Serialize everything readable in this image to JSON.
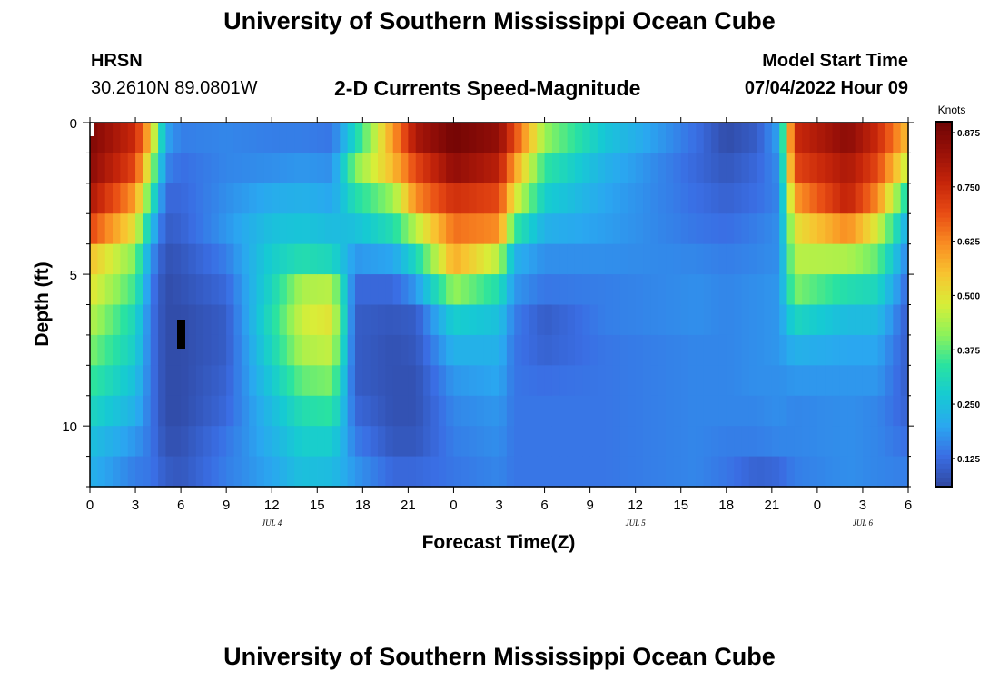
{
  "header": {
    "title": "University of Southern Mississippi Ocean Cube",
    "station_id": "HRSN",
    "station_coords": "30.2610N  89.0801W",
    "chart_heading": "2-D Currents Speed-Magnitude",
    "model_start_label": "Model Start Time",
    "model_start_value": "07/04/2022 Hour 09"
  },
  "footer": {
    "title": "University of Southern Mississippi Ocean Cube"
  },
  "chart_data": {
    "type": "heatmap",
    "xlabel": "Forecast Time(Z)",
    "ylabel": "Depth (ft)",
    "colorbar_label": "Knots",
    "x_tick_labels": [
      "0",
      "3",
      "6",
      "9",
      "12",
      "15",
      "18",
      "21",
      "0",
      "3",
      "6",
      "9",
      "12",
      "15",
      "18",
      "21",
      "0",
      "3",
      "6"
    ],
    "date_labels": [
      "JUL 4",
      "JUL 5",
      "JUL 6"
    ],
    "y_ticks": [
      0,
      5,
      10
    ],
    "ylim": [
      0,
      12
    ],
    "colorbar_ticks": [
      0.125,
      0.25,
      0.375,
      0.5,
      0.625,
      0.75,
      0.875
    ],
    "clim": [
      0.06,
      0.9
    ],
    "hours_total": 54,
    "depth_levels": 12,
    "value_control_hours": [
      0,
      3,
      4,
      5,
      6,
      9,
      12,
      14,
      16,
      17.5,
      20,
      21.5,
      24,
      27,
      28,
      30,
      34,
      40,
      42,
      44,
      45.5,
      46.5,
      50,
      52,
      54
    ],
    "value_profiles_knots": [
      [
        0.87,
        0.85,
        0.8,
        0.7,
        0.55,
        0.5,
        0.45,
        0.4,
        0.35,
        0.3,
        0.25,
        0.22
      ],
      [
        0.75,
        0.7,
        0.6,
        0.5,
        0.4,
        0.35,
        0.3,
        0.28,
        0.25,
        0.22,
        0.18,
        0.15
      ],
      [
        0.55,
        0.45,
        0.35,
        0.25,
        0.18,
        0.15,
        0.14,
        0.14,
        0.14,
        0.14,
        0.14,
        0.14
      ],
      [
        0.2,
        0.16,
        0.12,
        0.1,
        0.08,
        0.07,
        0.07,
        0.07,
        0.07,
        0.07,
        0.08,
        0.1
      ],
      [
        0.15,
        0.13,
        0.12,
        0.11,
        0.09,
        0.08,
        0.07,
        0.07,
        0.07,
        0.07,
        0.08,
        0.09
      ],
      [
        0.16,
        0.16,
        0.17,
        0.18,
        0.15,
        0.12,
        0.1,
        0.1,
        0.11,
        0.12,
        0.14,
        0.15
      ],
      [
        0.15,
        0.17,
        0.21,
        0.25,
        0.28,
        0.3,
        0.32,
        0.3,
        0.27,
        0.24,
        0.22,
        0.2
      ],
      [
        0.15,
        0.18,
        0.22,
        0.26,
        0.32,
        0.44,
        0.47,
        0.44,
        0.38,
        0.32,
        0.28,
        0.25
      ],
      [
        0.14,
        0.17,
        0.2,
        0.24,
        0.3,
        0.45,
        0.5,
        0.46,
        0.4,
        0.34,
        0.28,
        0.24
      ],
      [
        0.3,
        0.4,
        0.32,
        0.25,
        0.18,
        0.12,
        0.1,
        0.1,
        0.1,
        0.12,
        0.15,
        0.18
      ],
      [
        0.6,
        0.56,
        0.42,
        0.32,
        0.2,
        0.12,
        0.09,
        0.08,
        0.08,
        0.08,
        0.09,
        0.12
      ],
      [
        0.8,
        0.7,
        0.62,
        0.45,
        0.3,
        0.18,
        0.1,
        0.09,
        0.08,
        0.08,
        0.09,
        0.12
      ],
      [
        0.89,
        0.84,
        0.74,
        0.65,
        0.58,
        0.42,
        0.28,
        0.22,
        0.18,
        0.16,
        0.15,
        0.14
      ],
      [
        0.84,
        0.78,
        0.7,
        0.62,
        0.45,
        0.32,
        0.25,
        0.22,
        0.2,
        0.18,
        0.17,
        0.16
      ],
      [
        0.7,
        0.6,
        0.5,
        0.35,
        0.22,
        0.18,
        0.15,
        0.14,
        0.14,
        0.14,
        0.14,
        0.14
      ],
      [
        0.42,
        0.34,
        0.28,
        0.22,
        0.17,
        0.14,
        0.1,
        0.11,
        0.13,
        0.14,
        0.14,
        0.14
      ],
      [
        0.26,
        0.22,
        0.2,
        0.19,
        0.17,
        0.15,
        0.15,
        0.14,
        0.14,
        0.14,
        0.14,
        0.14
      ],
      [
        0.13,
        0.12,
        0.13,
        0.14,
        0.16,
        0.17,
        0.17,
        0.16,
        0.16,
        0.16,
        0.16,
        0.16
      ],
      [
        0.07,
        0.09,
        0.11,
        0.13,
        0.15,
        0.16,
        0.16,
        0.16,
        0.16,
        0.16,
        0.15,
        0.14
      ],
      [
        0.1,
        0.12,
        0.13,
        0.15,
        0.16,
        0.17,
        0.17,
        0.17,
        0.17,
        0.16,
        0.15,
        0.11
      ],
      [
        0.2,
        0.17,
        0.16,
        0.17,
        0.17,
        0.18,
        0.18,
        0.18,
        0.17,
        0.17,
        0.16,
        0.12
      ],
      [
        0.75,
        0.7,
        0.6,
        0.5,
        0.45,
        0.4,
        0.3,
        0.22,
        0.18,
        0.16,
        0.16,
        0.15
      ],
      [
        0.85,
        0.8,
        0.77,
        0.62,
        0.44,
        0.32,
        0.24,
        0.2,
        0.18,
        0.17,
        0.17,
        0.17
      ],
      [
        0.75,
        0.7,
        0.62,
        0.48,
        0.38,
        0.3,
        0.24,
        0.2,
        0.18,
        0.16,
        0.16,
        0.16
      ],
      [
        0.55,
        0.45,
        0.3,
        0.2,
        0.15,
        0.12,
        0.1,
        0.1,
        0.1,
        0.11,
        0.13,
        0.15
      ]
    ],
    "grid": false,
    "legend": "colorbar-right"
  },
  "colors": {
    "colormap_stops": [
      "#3047a0",
      "#3a6ee4",
      "#2aa7f0",
      "#16cad3",
      "#2ae3a0",
      "#8df25a",
      "#d8ee38",
      "#f8c330",
      "#f98c22",
      "#e84b14",
      "#c5250a",
      "#981008",
      "#6e0404"
    ],
    "missing": "#000000",
    "axis": "#000000"
  }
}
